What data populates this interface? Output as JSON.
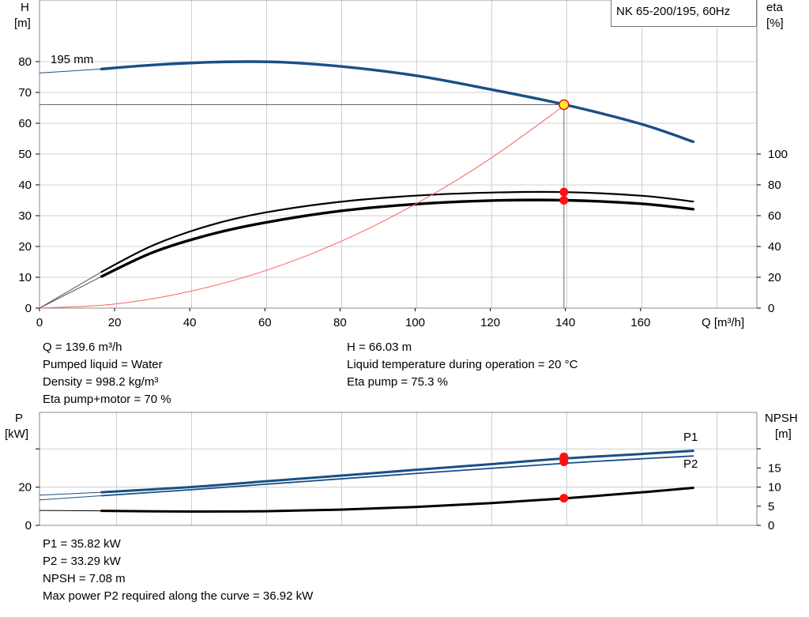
{
  "chart_data": [
    {
      "type": "line",
      "title": "NK 65-200/195, 60Hz",
      "xlabel": "Q [m³/h]",
      "ylabel_left": [
        "H",
        "[m]"
      ],
      "ylabel_right": [
        "eta",
        "[%]"
      ],
      "xlim": [
        0,
        190
      ],
      "ylim_left": [
        0,
        85
      ],
      "ylim_right": [
        0,
        100
      ],
      "x_ticks": [
        0,
        20,
        40,
        60,
        80,
        100,
        120,
        140,
        160
      ],
      "y_ticks_left": [
        0,
        10,
        20,
        30,
        40,
        50,
        60,
        70,
        80
      ],
      "y_ticks_right": [
        0,
        20,
        40,
        60,
        80,
        100
      ],
      "grid": true,
      "impeller_label": "195 mm",
      "series": [
        {
          "axis": "left",
          "color": "#1a4f85",
          "x": [
            0,
            16.5,
            30,
            45,
            55,
            65,
            80,
            100,
            120,
            140,
            160,
            174
          ],
          "y": [
            76.3,
            77.6,
            78.9,
            79.8,
            80.0,
            79.8,
            78.5,
            75.5,
            71.0,
            66.0,
            59.8,
            54.0
          ]
        },
        {
          "axis": "right",
          "color": "#000000",
          "x": [
            0,
            16.5,
            30,
            45,
            60,
            80,
            100,
            120,
            140,
            160,
            174
          ],
          "y": [
            0,
            23.5,
            40.5,
            53.5,
            62.0,
            69.0,
            73.0,
            75.0,
            75.3,
            73.0,
            69.2
          ]
        },
        {
          "axis": "right",
          "color": "#000000",
          "x": [
            0,
            16.5,
            30,
            45,
            60,
            80,
            100,
            120,
            140,
            160,
            174
          ],
          "y": [
            0,
            20.5,
            36.0,
            47.5,
            55.5,
            63.0,
            67.5,
            69.8,
            70.0,
            67.8,
            64.2
          ]
        },
        {
          "axis": "left",
          "color": "#ff6060",
          "x": [
            0,
            20,
            40,
            60,
            80,
            100,
            120,
            140
          ],
          "y": [
            0,
            1.3,
            5.4,
            12.1,
            21.5,
            33.7,
            48.5,
            66.03
          ]
        }
      ],
      "operating_points": [
        {
          "x": 139.6,
          "y": 66.03,
          "axis": "left",
          "style": "yellow"
        },
        {
          "x": 139.6,
          "y": 75.3,
          "axis": "right",
          "style": "red"
        },
        {
          "x": 139.6,
          "y": 70.0,
          "axis": "right",
          "style": "red"
        }
      ]
    },
    {
      "type": "line",
      "ylabel_left": [
        "P",
        "[kW]"
      ],
      "ylabel_right": [
        "NPSH",
        "[m]"
      ],
      "xlim": [
        0,
        190
      ],
      "ylim_left": [
        0,
        50
      ],
      "ylim_right": [
        0,
        25
      ],
      "y_ticks_left": [
        0,
        20
      ],
      "y_ticks_right": [
        0,
        5,
        10,
        15
      ],
      "grid": true,
      "series": [
        {
          "name": "P1",
          "axis": "left",
          "color": "#1a4f85",
          "width": 3,
          "x": [
            0,
            16.5,
            40,
            60,
            80,
            100,
            120,
            140,
            160,
            174
          ],
          "y": [
            15.8,
            17.3,
            20.0,
            23.0,
            26.0,
            29.0,
            32.0,
            35.0,
            37.3,
            39.0
          ]
        },
        {
          "name": "P2",
          "axis": "left",
          "color": "#1a4f85",
          "width": 1.8,
          "x": [
            0,
            16.5,
            40,
            60,
            80,
            100,
            120,
            140,
            160,
            174
          ],
          "y": [
            13.3,
            15.5,
            18.6,
            21.5,
            24.3,
            27.1,
            29.8,
            32.5,
            34.8,
            36.3
          ]
        },
        {
          "axis": "right",
          "color": "#000000",
          "width": 3,
          "x": [
            0,
            16.5,
            40,
            60,
            80,
            100,
            120,
            140,
            160,
            174
          ],
          "y": [
            3.9,
            3.8,
            3.6,
            3.7,
            4.1,
            4.8,
            5.8,
            7.08,
            8.6,
            9.8
          ]
        }
      ],
      "operating_points": [
        {
          "x": 139.6,
          "y": 35.82,
          "axis": "left",
          "style": "red"
        },
        {
          "x": 139.6,
          "y": 33.29,
          "axis": "left",
          "style": "red"
        },
        {
          "x": 139.6,
          "y": 7.08,
          "axis": "right",
          "style": "red"
        }
      ]
    }
  ],
  "duty_info": {
    "q": "Q = 139.6 m³/h",
    "h": "H = 66.03 m",
    "liquid": "Pumped liquid = Water",
    "temperature": "Liquid temperature during operation = 20 °C",
    "density": "Density = 998.2 kg/m³",
    "eta_pump": "Eta pump = 75.3 %",
    "eta_pump_motor": "Eta pump+motor = 70 %"
  },
  "power_info": {
    "p1": "P1 = 35.82 kW",
    "p2": "P2 = 33.29 kW",
    "npsh": "NPSH = 7.08 m",
    "max_power": "Max power P2 required along the curve = 36.92 kW"
  }
}
